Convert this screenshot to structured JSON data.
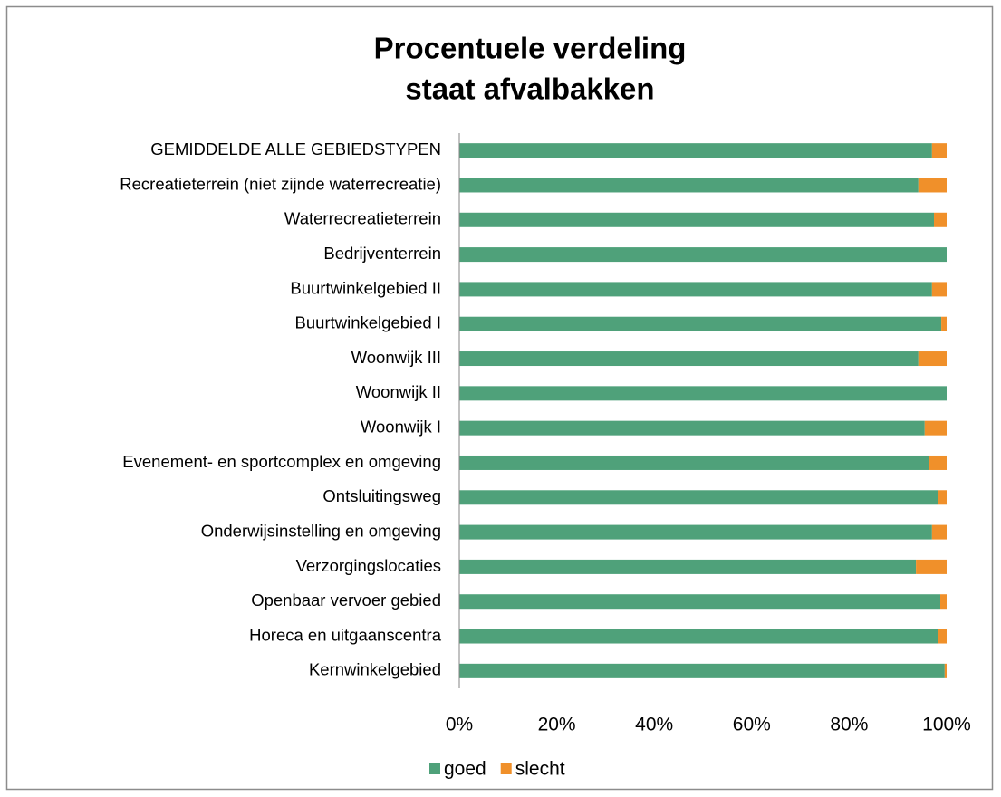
{
  "chart_data": {
    "type": "stacked_barh",
    "title": [
      "Procentuele verdeling",
      "staat afvalbakken"
    ],
    "categories": [
      "GEMIDDELDE ALLE GEBIEDSTYPEN",
      "Recreatieterrein (niet zijnde waterrecreatie)",
      "Waterrecreatieterrein",
      "Bedrijventerrein",
      "Buurtwinkelgebied II",
      "Buurtwinkelgebied I",
      "Woonwijk III",
      "Woonwijk II",
      "Woonwijk I",
      "Evenement- en sportcomplex en omgeving",
      "Ontsluitingsweg",
      "Onderwijsinstelling en omgeving",
      "Verzorgingslocaties",
      "Openbaar vervoer gebied",
      "Horeca en uitgaanscentra",
      "Kernwinkelgebied"
    ],
    "series": [
      {
        "name": "goed",
        "color": "#4fa17a",
        "values": [
          97,
          94.2,
          97.4,
          100,
          97,
          98.9,
          94.2,
          100,
          95.5,
          96.3,
          98.3,
          97,
          93.7,
          98.7,
          98.3,
          99.6
        ]
      },
      {
        "name": "slecht",
        "color": "#f0902a",
        "values": [
          3,
          5.8,
          2.6,
          0,
          3,
          1.1,
          5.8,
          0,
          4.5,
          3.7,
          1.7,
          3,
          6.3,
          1.3,
          1.7,
          0.4
        ]
      }
    ],
    "xlim": [
      0,
      100
    ],
    "xticks": [
      {
        "value": 0,
        "label": "0%"
      },
      {
        "value": 20,
        "label": "20%"
      },
      {
        "value": 40,
        "label": "40%"
      },
      {
        "value": 60,
        "label": "60%"
      },
      {
        "value": 80,
        "label": "80%"
      },
      {
        "value": 100,
        "label": "100%"
      }
    ],
    "legend": "bottom"
  }
}
